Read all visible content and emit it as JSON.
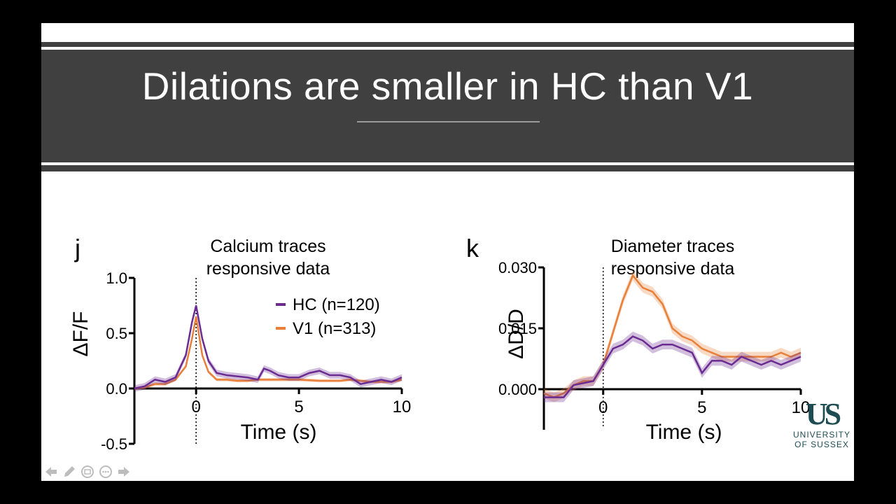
{
  "slide": {
    "title": "Dilations are smaller in HC than V1"
  },
  "logo": {
    "mark": "US",
    "line1": "UNIVERSITY",
    "line2": "OF SUSSEX"
  },
  "nav": {
    "icons": [
      "arrow-left-icon",
      "pencil-icon",
      "slide-sorter-icon",
      "more-options-icon",
      "arrow-right-icon"
    ]
  },
  "colors": {
    "hc": "#6a2c91",
    "v1": "#e8803a",
    "band": "#404040"
  },
  "chart_data": [
    {
      "type": "line",
      "panel_letter": "j",
      "title": "Calcium traces\nresponsive data",
      "title_lines": [
        "Calcium traces",
        "responsive data"
      ],
      "xlabel": "Time (s)",
      "ylabel": "ΔF/F",
      "xlim": [
        -3,
        10
      ],
      "ylim": [
        -0.5,
        1.0
      ],
      "x_ticks": [
        0,
        5,
        10
      ],
      "x_tick_labels": [
        "0",
        "5",
        "10"
      ],
      "y_ticks": [
        1.0,
        0.5,
        0.0,
        -0.5
      ],
      "y_tick_labels": [
        "1.0",
        "0.5",
        "0.0",
        "-0.5"
      ],
      "stimulus_line_x": 0,
      "legend": "top-right",
      "series": [
        {
          "name": "HC (n=120)",
          "color_key": "hc",
          "x": [
            -3,
            -2.5,
            -2,
            -1.5,
            -1,
            -0.5,
            -0.2,
            0,
            0.3,
            0.6,
            1,
            1.5,
            2,
            2.5,
            3,
            3.3,
            3.6,
            4,
            4.5,
            5,
            5.5,
            6,
            6.5,
            7,
            7.5,
            8,
            8.5,
            9,
            9.5,
            10
          ],
          "values": [
            0.0,
            0.02,
            0.08,
            0.06,
            0.1,
            0.3,
            0.6,
            0.75,
            0.45,
            0.25,
            0.14,
            0.12,
            0.11,
            0.1,
            0.08,
            0.18,
            0.16,
            0.12,
            0.1,
            0.1,
            0.14,
            0.16,
            0.12,
            0.12,
            0.1,
            0.04,
            0.06,
            0.08,
            0.06,
            0.1
          ],
          "band_halfwidth": 0.03
        },
        {
          "name": "V1 (n=313)",
          "color_key": "v1",
          "x": [
            -3,
            -2.5,
            -2,
            -1.5,
            -1,
            -0.5,
            -0.2,
            0,
            0.3,
            0.6,
            1,
            1.5,
            2,
            2.5,
            3,
            3.5,
            4,
            5,
            6,
            7,
            7.5,
            8,
            8.5,
            9,
            9.5,
            10
          ],
          "values": [
            0.0,
            0.01,
            0.04,
            0.04,
            0.08,
            0.2,
            0.45,
            0.65,
            0.3,
            0.15,
            0.08,
            0.08,
            0.07,
            0.07,
            0.08,
            0.08,
            0.08,
            0.08,
            0.07,
            0.07,
            0.08,
            0.07,
            0.06,
            0.06,
            0.06,
            0.08
          ],
          "band_halfwidth": 0.015
        }
      ]
    },
    {
      "type": "line",
      "panel_letter": "k",
      "title": "Diameter traces\nresponsive data",
      "title_lines": [
        "Diameter traces",
        "responsive data"
      ],
      "xlabel": "Time (s)",
      "ylabel": "ΔD/D",
      "xlim": [
        -3,
        10
      ],
      "ylim": [
        -0.01,
        0.03
      ],
      "x_ticks": [
        0,
        5,
        10
      ],
      "x_tick_labels": [
        "0",
        "5",
        "10"
      ],
      "y_ticks": [
        0.03,
        0.015,
        0.0
      ],
      "y_tick_labels": [
        "0.030",
        "0.015",
        "0.000"
      ],
      "stimulus_line_x": 0,
      "series": [
        {
          "name": "HC",
          "color_key": "hc",
          "x": [
            -3,
            -2.5,
            -2,
            -1.5,
            -1,
            -0.5,
            0,
            0.5,
            1,
            1.5,
            2,
            2.5,
            3,
            3.5,
            4,
            4.5,
            5,
            5.5,
            6,
            6.5,
            7,
            7.5,
            8,
            8.5,
            9,
            9.5,
            10
          ],
          "values": [
            -0.002,
            -0.002,
            -0.002,
            0.001,
            0.0015,
            0.002,
            0.006,
            0.01,
            0.011,
            0.013,
            0.012,
            0.01,
            0.011,
            0.011,
            0.01,
            0.009,
            0.004,
            0.007,
            0.007,
            0.006,
            0.008,
            0.007,
            0.006,
            0.007,
            0.006,
            0.007,
            0.008
          ],
          "band_halfwidth": 0.0012
        },
        {
          "name": "V1",
          "color_key": "v1",
          "x": [
            -3,
            -2.5,
            -2,
            -1.5,
            -1,
            -0.5,
            0,
            0.5,
            1,
            1.5,
            2,
            2.5,
            3,
            3.5,
            4,
            4.5,
            5,
            5.5,
            6,
            6.5,
            7,
            7.5,
            8,
            8.5,
            9,
            9.5,
            10
          ],
          "values": [
            -0.001,
            -0.002,
            -0.001,
            0.001,
            0.002,
            0.002,
            0.006,
            0.014,
            0.022,
            0.028,
            0.025,
            0.024,
            0.021,
            0.015,
            0.013,
            0.012,
            0.01,
            0.009,
            0.008,
            0.008,
            0.008,
            0.008,
            0.008,
            0.008,
            0.009,
            0.008,
            0.009
          ],
          "band_halfwidth": 0.0012
        }
      ]
    }
  ]
}
